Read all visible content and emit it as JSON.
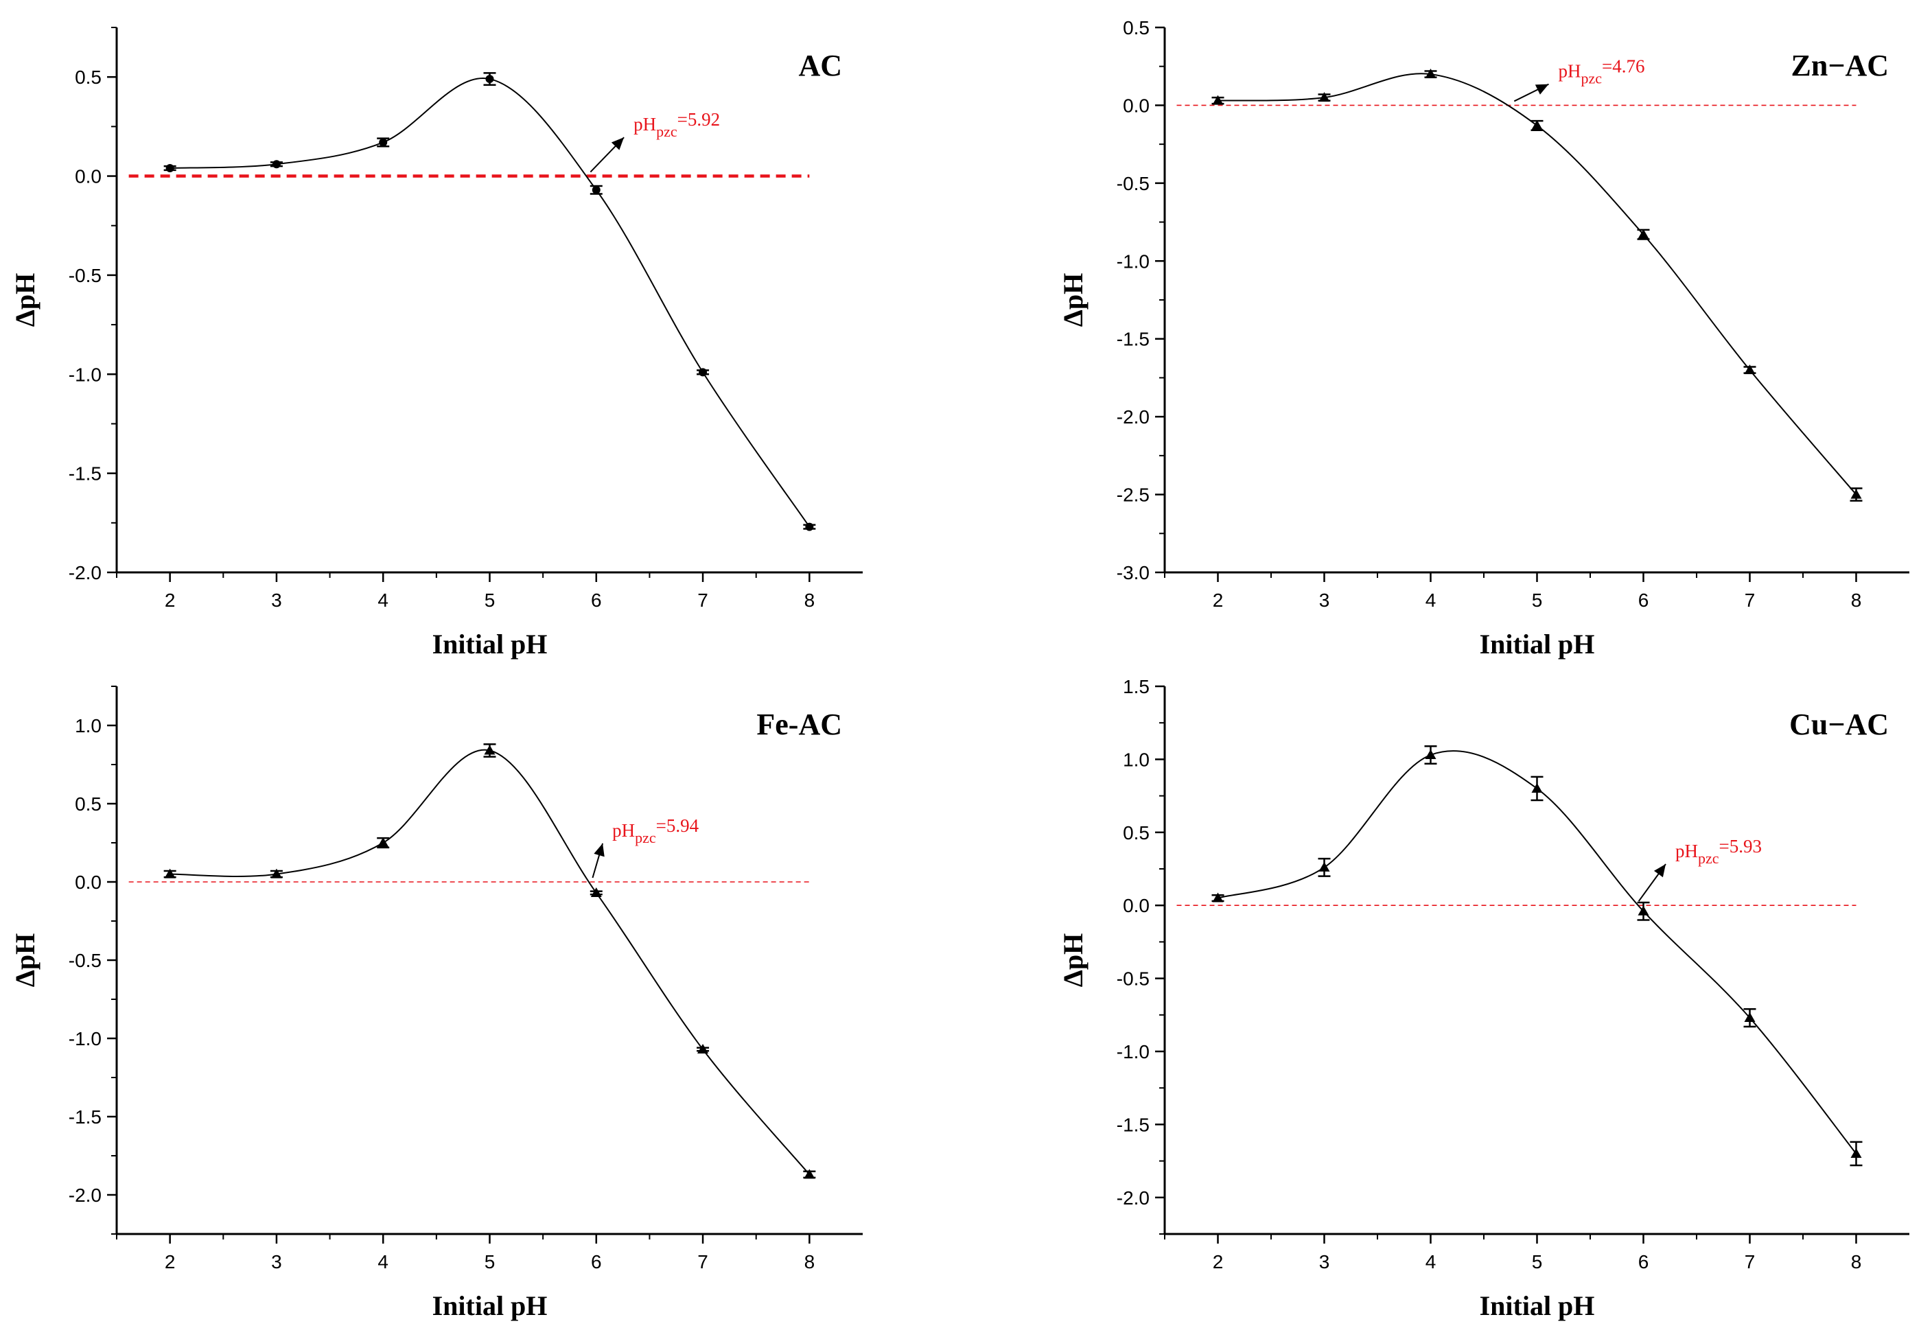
{
  "chart_data": [
    {
      "type": "line",
      "panel_label": "AC",
      "xlabel": "Initial pH",
      "ylabel": "ΔpH",
      "xlim": [
        1.5,
        8.5
      ],
      "ylim": [
        -2.0,
        0.75
      ],
      "xticks": [
        2,
        3,
        4,
        5,
        6,
        7,
        8
      ],
      "xtick_labels": [
        "2",
        "3",
        "4",
        "5",
        "6",
        "7",
        "8"
      ],
      "yticks": [
        -2.0,
        -1.5,
        -1.0,
        -0.5,
        0.0,
        0.5
      ],
      "ytick_labels": [
        "-2.0",
        "-1.5",
        "-1.0",
        "-0.5",
        "0.0",
        "0.5"
      ],
      "x": [
        2,
        3,
        4,
        5,
        6,
        7,
        8
      ],
      "y": [
        0.04,
        0.06,
        0.17,
        0.49,
        -0.07,
        -0.99,
        -1.77
      ],
      "error": [
        0.01,
        0.01,
        0.02,
        0.03,
        0.02,
        0.01,
        0.01
      ],
      "marker": "circle",
      "pzc_x": 5.92,
      "reference_line": {
        "y": 0.0,
        "style": "dashed",
        "color": "#e8141b",
        "emphasis": "bold"
      },
      "annotation": {
        "prefix": "pH",
        "sub": "pzc",
        "suffix": "=5.92",
        "text_at": [
          6.35,
          0.23
        ]
      }
    },
    {
      "type": "line",
      "panel_label": "Zn−AC",
      "xlabel": "Initial pH",
      "ylabel": "ΔpH",
      "xlim": [
        1.5,
        8.5
      ],
      "ylim": [
        -3.0,
        0.5
      ],
      "xticks": [
        2,
        3,
        4,
        5,
        6,
        7,
        8
      ],
      "xtick_labels": [
        "2",
        "3",
        "4",
        "5",
        "6",
        "7",
        "8"
      ],
      "yticks": [
        -3.0,
        -2.5,
        -2.0,
        -1.5,
        -1.0,
        -0.5,
        0.0,
        0.5
      ],
      "ytick_labels": [
        "-3.0",
        "-2.5",
        "-2.0",
        "-1.5",
        "-1.0",
        "-0.5",
        "0.0",
        "0.5"
      ],
      "x": [
        2,
        3,
        4,
        5,
        6,
        7,
        8
      ],
      "y": [
        0.03,
        0.05,
        0.2,
        -0.13,
        -0.83,
        -1.7,
        -2.5
      ],
      "error": [
        0.02,
        0.02,
        0.02,
        0.03,
        0.03,
        0.02,
        0.04
      ],
      "marker": "triangle",
      "pzc_x": 4.76,
      "reference_line": {
        "y": 0.0,
        "style": "dashed",
        "color": "#e8141b",
        "emphasis": "thin"
      },
      "annotation": {
        "prefix": "pH",
        "sub": "pzc",
        "suffix": "=4.76",
        "text_at": [
          5.2,
          0.18
        ]
      }
    },
    {
      "type": "line",
      "panel_label": "Fe-AC",
      "xlabel": "Initial pH",
      "ylabel": "ΔpH",
      "xlim": [
        1.5,
        8.5
      ],
      "ylim": [
        -2.25,
        1.25
      ],
      "xticks": [
        2,
        3,
        4,
        5,
        6,
        7,
        8
      ],
      "xtick_labels": [
        "2",
        "3",
        "4",
        "5",
        "6",
        "7",
        "8"
      ],
      "yticks": [
        -2.0,
        -1.5,
        -1.0,
        -0.5,
        0.0,
        0.5,
        1.0
      ],
      "ytick_labels": [
        "-2.0",
        "-1.5",
        "-1.0",
        "-0.5",
        "0.0",
        "0.5",
        "1.0"
      ],
      "x": [
        2,
        3,
        4,
        5,
        6,
        7,
        8
      ],
      "y": [
        0.05,
        0.05,
        0.25,
        0.84,
        -0.07,
        -1.07,
        -1.87
      ],
      "error": [
        0.02,
        0.02,
        0.03,
        0.04,
        0.01,
        0.01,
        0.02
      ],
      "marker": "triangle",
      "pzc_x": 5.94,
      "reference_line": {
        "y": 0.0,
        "style": "dashed",
        "color": "#e8141b",
        "emphasis": "thin"
      },
      "annotation": {
        "prefix": "pH",
        "sub": "pzc",
        "suffix": "=5.94",
        "text_at": [
          6.15,
          0.29
        ]
      }
    },
    {
      "type": "line",
      "panel_label": "Cu−AC",
      "xlabel": "Initial pH",
      "ylabel": "ΔpH",
      "xlim": [
        1.5,
        8.5
      ],
      "ylim": [
        -2.25,
        1.5
      ],
      "xticks": [
        2,
        3,
        4,
        5,
        6,
        7,
        8
      ],
      "xtick_labels": [
        "2",
        "3",
        "4",
        "5",
        "6",
        "7",
        "8"
      ],
      "yticks": [
        -2.0,
        -1.5,
        -1.0,
        -0.5,
        0.0,
        0.5,
        1.0,
        1.5
      ],
      "ytick_labels": [
        "-2.0",
        "-1.5",
        "-1.0",
        "-0.5",
        "0.0",
        "0.5",
        "1.0",
        "1.5"
      ],
      "x": [
        2,
        3,
        4,
        5,
        6,
        7,
        8
      ],
      "y": [
        0.05,
        0.26,
        1.03,
        0.8,
        -0.04,
        -0.77,
        -1.7
      ],
      "error": [
        0.02,
        0.06,
        0.06,
        0.08,
        0.06,
        0.06,
        0.08
      ],
      "marker": "triangle",
      "pzc_x": 5.93,
      "reference_line": {
        "y": 0.0,
        "style": "dashed",
        "color": "#e8141b",
        "emphasis": "thin"
      },
      "annotation": {
        "prefix": "pH",
        "sub": "pzc",
        "suffix": "=5.93",
        "text_at": [
          6.3,
          0.33
        ]
      }
    }
  ],
  "colors": {
    "reference": "#e8141b",
    "annotation": "#e8141b",
    "curve": "#000000",
    "axes": "#000000"
  }
}
